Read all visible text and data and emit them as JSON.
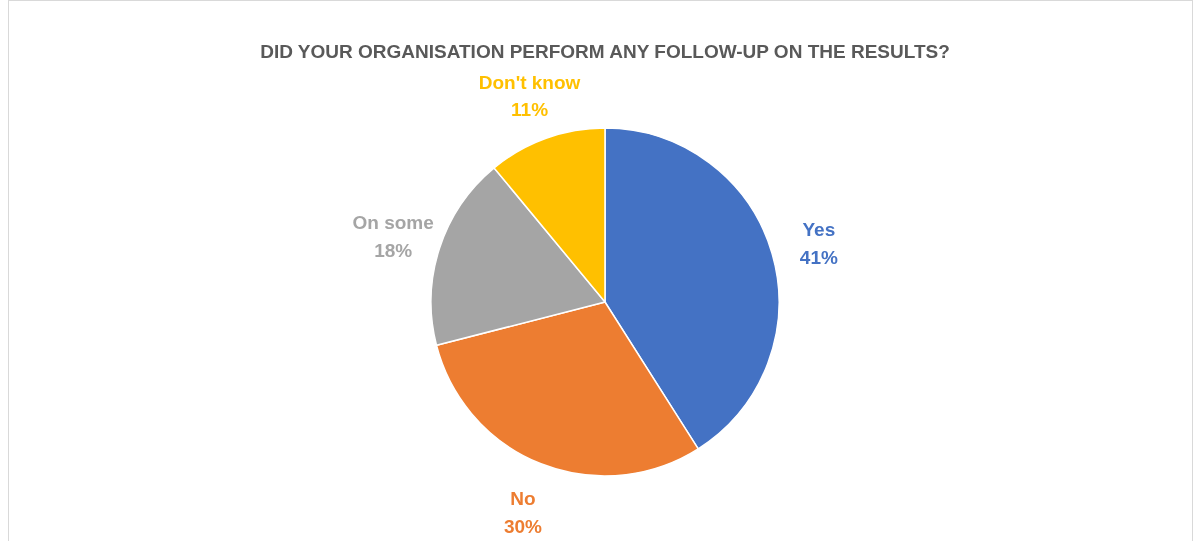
{
  "chart_data": {
    "type": "pie",
    "title": "DID YOUR ORGANISATION PERFORM ANY FOLLOW-UP ON THE RESULTS?",
    "categories": [
      "Yes",
      "No",
      "On some",
      "Don't know"
    ],
    "values": [
      41,
      30,
      18,
      11
    ],
    "value_labels": [
      "41%",
      "30%",
      "18%",
      "11%"
    ],
    "colors": [
      "#4472c4",
      "#ed7d31",
      "#a5a5a5",
      "#ffc000"
    ]
  }
}
